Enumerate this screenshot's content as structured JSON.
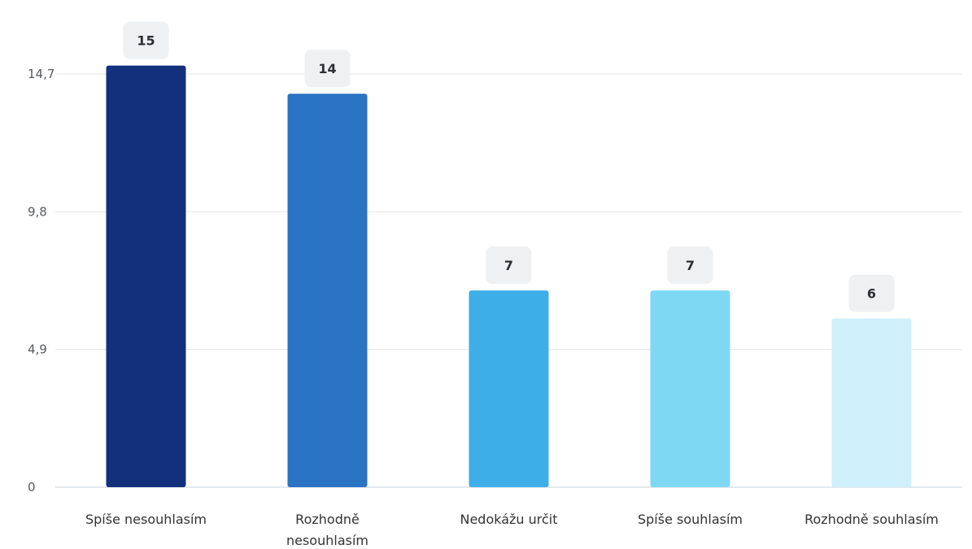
{
  "chart_data": {
    "type": "bar",
    "categories": [
      [
        "Spíše nesouhlasím"
      ],
      [
        "Rozhodně",
        "nesouhlasím"
      ],
      [
        "Nedokážu určit"
      ],
      [
        "Spíše souhlasím"
      ],
      [
        "Rozhodně souhlasím"
      ]
    ],
    "values": [
      15,
      14,
      7,
      7,
      6
    ],
    "value_labels": [
      "15",
      "14",
      "7",
      "7",
      "6"
    ],
    "colors": [
      "#13307c",
      "#2b73c3",
      "#3daee7",
      "#7fd8f3",
      "#cff0fa"
    ],
    "yticks": [
      0,
      4.9,
      9.8,
      14.7
    ],
    "ytick_labels": [
      "0",
      "4,9",
      "9,8",
      "14,7"
    ],
    "ylim": [
      0,
      14.7
    ],
    "grid": true,
    "title": "",
    "xlabel": "",
    "ylabel": ""
  }
}
